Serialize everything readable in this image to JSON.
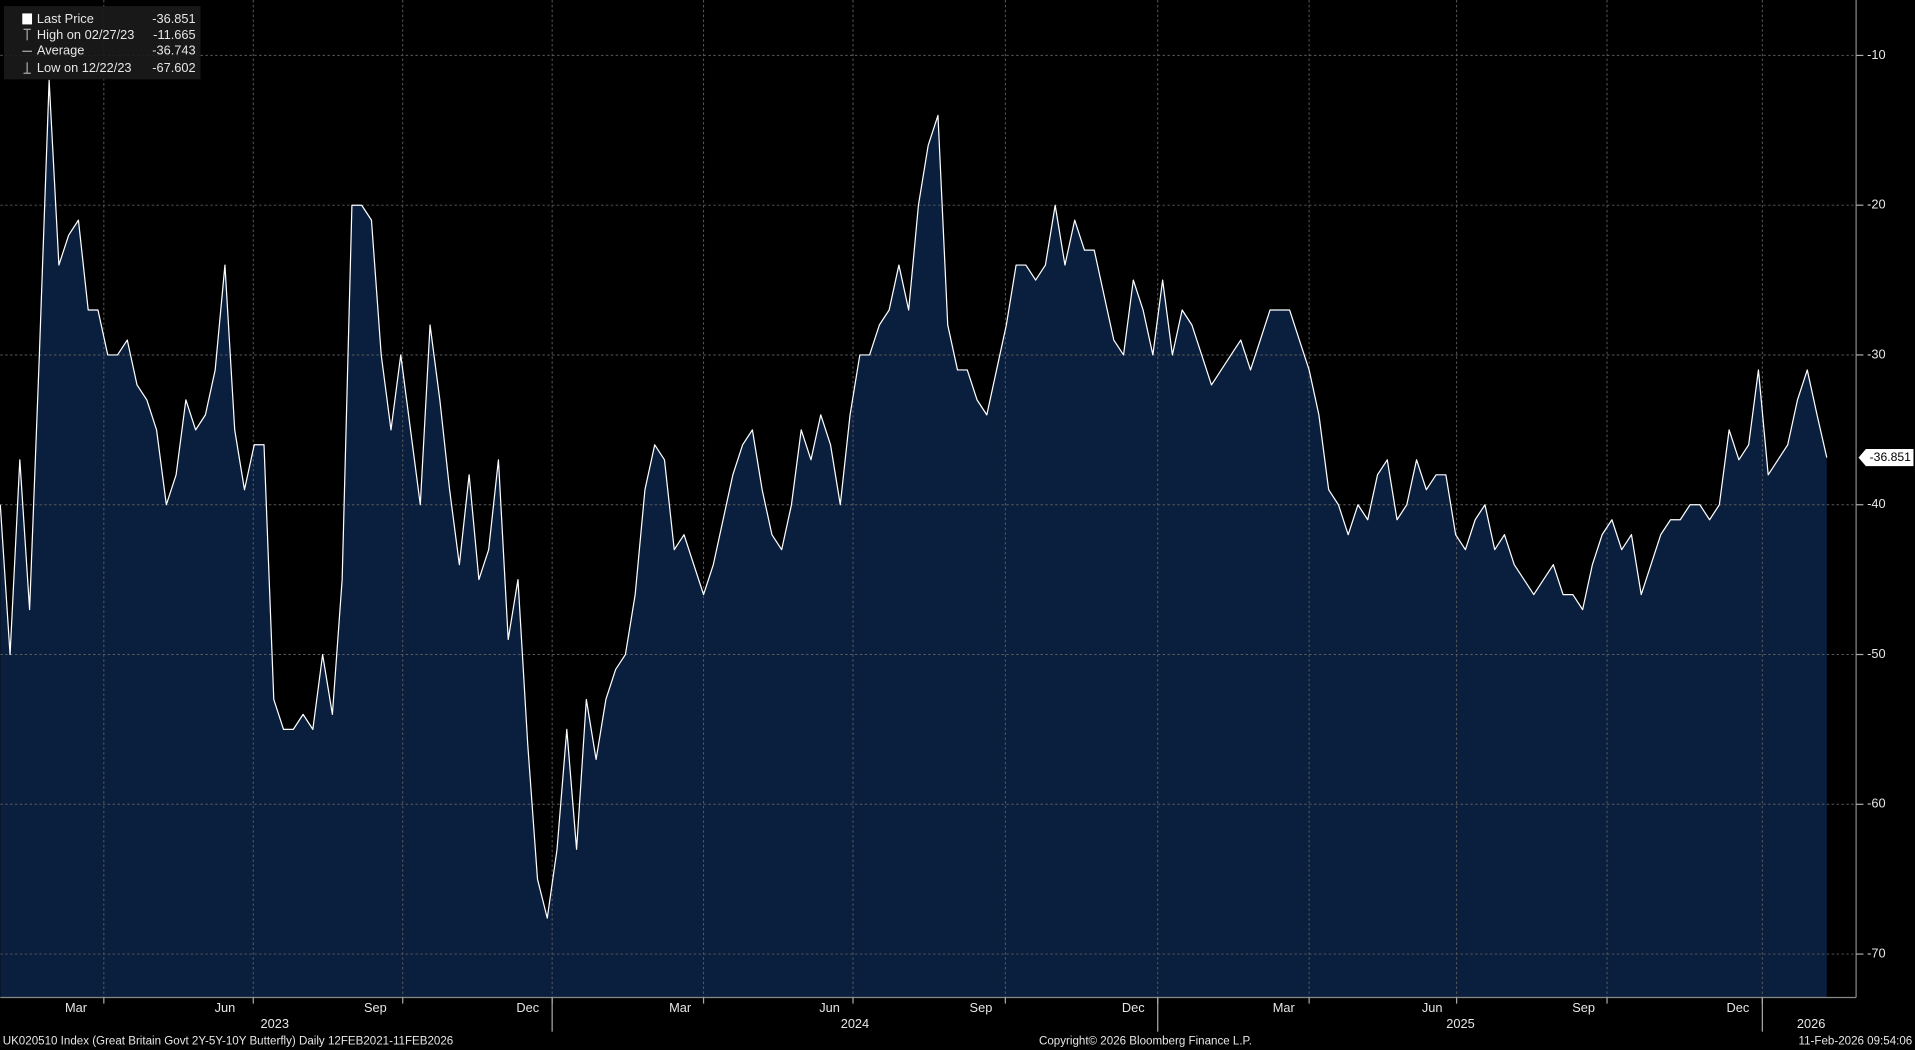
{
  "chart_data": {
    "type": "area",
    "legend": [
      {
        "label": "Last Price",
        "value": -36.851
      },
      {
        "label": "High on 02/27/23",
        "value": -11.665
      },
      {
        "label": "Average",
        "value": -36.743
      },
      {
        "label": "Low on 12/22/23",
        "value": -67.602
      }
    ],
    "series": [
      {
        "name": "Last Price",
        "color": "#ffffff",
        "fill": "#0a1f3d",
        "values": [
          -40,
          -50,
          -37,
          -47,
          -30,
          -11.665,
          -24,
          -22,
          -21,
          -27,
          -27,
          -30,
          -30,
          -29,
          -32,
          -33,
          -35,
          -40,
          -38,
          -33,
          -35,
          -34,
          -31,
          -24,
          -35,
          -39,
          -36,
          -36,
          -53,
          -55,
          -55,
          -54,
          -55,
          -50,
          -54,
          -45,
          -20,
          -20,
          -21,
          -30,
          -35,
          -30,
          -35,
          -40,
          -28,
          -33,
          -39,
          -44,
          -38,
          -45,
          -43,
          -37,
          -49,
          -45,
          -56,
          -65,
          -67.602,
          -63,
          -55,
          -63,
          -53,
          -57,
          -53,
          -51,
          -50,
          -46,
          -39,
          -36,
          -37,
          -43,
          -42,
          -44,
          -46,
          -44,
          -41,
          -38,
          -36,
          -35,
          -39,
          -42,
          -43,
          -40,
          -35,
          -37,
          -34,
          -36,
          -40,
          -34,
          -30,
          -30,
          -28,
          -27,
          -24,
          -27,
          -20,
          -16,
          -14,
          -28,
          -31,
          -31,
          -33,
          -34,
          -31,
          -28,
          -24,
          -24,
          -25,
          -24,
          -20,
          -24,
          -21,
          -23,
          -23,
          -26,
          -29,
          -30,
          -25,
          -27,
          -30,
          -25,
          -30,
          -27,
          -28,
          -30,
          -32,
          -31,
          -30,
          -29,
          -31,
          -29,
          -27,
          -27,
          -27,
          -29,
          -31,
          -34,
          -39,
          -40,
          -42,
          -40,
          -41,
          -38,
          -37,
          -41,
          -40,
          -37,
          -39,
          -38,
          -38,
          -42,
          -43,
          -41,
          -40,
          -43,
          -42,
          -44,
          -45,
          -46,
          -45,
          -44,
          -46,
          -46,
          -47,
          -44,
          -42,
          -41,
          -43,
          -42,
          -46,
          -44,
          -42,
          -41,
          -41,
          -40,
          -40,
          -41,
          -40,
          -35,
          -37,
          -36,
          -31,
          -38,
          -37,
          -36,
          -33,
          -31,
          -34,
          -36.851
        ]
      }
    ],
    "xlim": [
      0,
      190
    ],
    "xticks": [
      {
        "value": 7.75,
        "label": "Mar"
      },
      {
        "value": 23,
        "label": "Jun"
      },
      {
        "value": 38.4,
        "label": "Sep"
      },
      {
        "value": 54,
        "label": "Dec"
      },
      {
        "value": 69.6,
        "label": "Mar"
      },
      {
        "value": 84.9,
        "label": "Jun"
      },
      {
        "value": 100.4,
        "label": "Sep"
      },
      {
        "value": 116,
        "label": "Dec"
      },
      {
        "value": 131.4,
        "label": "Mar"
      },
      {
        "value": 146.6,
        "label": "Jun"
      },
      {
        "value": 162.1,
        "label": "Sep"
      },
      {
        "value": 177.9,
        "label": "Dec"
      }
    ],
    "xgrid": [
      10.6,
      25.9,
      41.2,
      56.5,
      72,
      87.3,
      102.9,
      118.5,
      134,
      149.1,
      164.5,
      180.4
    ],
    "year_labels": [
      {
        "value": 28.1,
        "label": "2023"
      },
      {
        "value": 87.5,
        "label": "2024"
      },
      {
        "value": 149.5,
        "label": "2025"
      },
      {
        "value": 185.4,
        "label": "2026"
      }
    ],
    "year_breaks": [
      56.5,
      118.5,
      180.4
    ],
    "ylim": [
      -72.9,
      -6.3
    ],
    "yticks": [
      -70,
      -60,
      -50,
      -40,
      -30,
      -20,
      -10
    ],
    "grid": true,
    "footer_left": "UK020510 Index (Great Britain Govt 2Y-5Y-10Y Butterfly) Daily 12FEB2021-11FEB2026",
    "footer_center": "Copyright© 2026 Bloomberg Finance L.P.",
    "footer_right": "11-Feb-2026 09:54:06"
  }
}
